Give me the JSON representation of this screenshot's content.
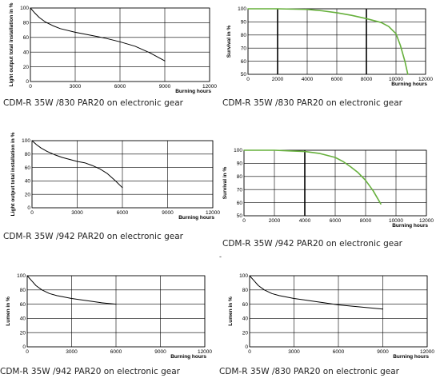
{
  "chart_data": [
    {
      "type": "line",
      "ylabel": "Light output total installation in %",
      "xlabel": "Burning hours",
      "x_ticks": [
        "0",
        "3000",
        "6000",
        "9000",
        "12000"
      ],
      "y_ticks": [
        "0",
        "20",
        "40",
        "60",
        "80",
        "100"
      ],
      "xlim": [
        0,
        12000
      ],
      "ylim": [
        0,
        100
      ],
      "grid": true,
      "series": [
        {
          "color": "#000000",
          "x": [
            0,
            300,
            600,
            1000,
            1500,
            2000,
            3000,
            4000,
            5000,
            6000,
            7000,
            8000,
            9000
          ],
          "y": [
            100,
            93,
            87,
            81,
            76,
            72,
            67,
            63,
            59,
            54,
            48,
            39,
            28
          ]
        }
      ],
      "caption": "CDM-R 35W /830 PAR20 on electronic gear"
    },
    {
      "type": "line",
      "ylabel": "Survival in %",
      "xlabel": "Burning hours",
      "x_ticks": [
        "0",
        "2000",
        "4000",
        "6000",
        "8000",
        "10000",
        "12000"
      ],
      "y_ticks": [
        "50",
        "60",
        "70",
        "80",
        "90",
        "100"
      ],
      "xlim": [
        0,
        12000
      ],
      "ylim": [
        50,
        100
      ],
      "grid": true,
      "series": [
        {
          "color": "#66b03c",
          "x": [
            0,
            2000,
            4000,
            5000,
            6000,
            7000,
            8000,
            9000,
            9500,
            10000,
            10300,
            10600,
            10800
          ],
          "y": [
            100,
            100,
            99.5,
            98.5,
            97,
            95,
            92.5,
            89.5,
            86.5,
            81,
            72,
            60,
            50
          ]
        }
      ],
      "caption": "CDM-R 35W /830 PAR20 on electronic gear"
    },
    {
      "type": "line",
      "ylabel": "Light output total installation in %",
      "xlabel": "Burning hours",
      "x_ticks": [
        "0",
        "3000",
        "6000",
        "9000",
        "12000"
      ],
      "y_ticks": [
        "0",
        "20",
        "40",
        "60",
        "80",
        "100"
      ],
      "xlim": [
        0,
        12000
      ],
      "ylim": [
        0,
        100
      ],
      "grid": true,
      "series": [
        {
          "color": "#000000",
          "x": [
            0,
            300,
            600,
            1000,
            1500,
            2000,
            2500,
            3000,
            3500,
            4000,
            4500,
            5000,
            5500,
            6000
          ],
          "y": [
            100,
            94,
            89,
            84,
            79,
            75,
            72,
            69,
            67,
            63,
            58,
            51,
            41,
            30
          ]
        }
      ],
      "caption": "CDM-R 35W /942 PAR20 on electronic gear"
    },
    {
      "type": "line",
      "ylabel": "Survival in %",
      "xlabel": "Burning hours",
      "x_ticks": [
        "0",
        "2000",
        "4000",
        "6000",
        "8000",
        "10000",
        "12000"
      ],
      "y_ticks": [
        "50",
        "60",
        "70",
        "80",
        "90",
        "100"
      ],
      "xlim": [
        0,
        12000
      ],
      "ylim": [
        50,
        100
      ],
      "grid": true,
      "series": [
        {
          "color": "#66b03c",
          "x": [
            0,
            2000,
            3000,
            4000,
            5000,
            6000,
            6500,
            7000,
            7500,
            8000,
            8500,
            9000
          ],
          "y": [
            100,
            100,
            99.5,
            99,
            97.5,
            94.5,
            91.5,
            87.5,
            83,
            77,
            69,
            59
          ]
        }
      ],
      "caption": "CDM-R 35W /942 PAR20 on electronic gear"
    },
    {
      "type": "line",
      "ylabel": "Lumen in %",
      "xlabel": "Burning hours",
      "x_ticks": [
        "0",
        "3000",
        "6000",
        "9000",
        "12000"
      ],
      "y_ticks": [
        "0",
        "20",
        "40",
        "60",
        "80",
        "100"
      ],
      "xlim": [
        0,
        12000
      ],
      "ylim": [
        0,
        100
      ],
      "grid": true,
      "series": [
        {
          "color": "#000000",
          "x": [
            0,
            300,
            600,
            1000,
            1500,
            2000,
            3000,
            4000,
            5000,
            6000
          ],
          "y": [
            100,
            93,
            86,
            80,
            75,
            72,
            68,
            65,
            62,
            60
          ]
        }
      ],
      "caption": "CDM-R 35W /942 PAR20 on electronic gear"
    },
    {
      "type": "line",
      "ylabel": "Lumen in %",
      "xlabel": "Burning hours",
      "x_ticks": [
        "0",
        "3000",
        "6000",
        "9000",
        "12000"
      ],
      "y_ticks": [
        "0",
        "20",
        "40",
        "60",
        "80",
        "100"
      ],
      "xlim": [
        0,
        12000
      ],
      "ylim": [
        0,
        100
      ],
      "grid": true,
      "series": [
        {
          "color": "#000000",
          "x": [
            0,
            300,
            600,
            1000,
            1500,
            2000,
            3000,
            4000,
            5000,
            6000,
            7000,
            8000,
            9000
          ],
          "y": [
            100,
            93,
            86,
            80,
            75,
            72,
            68,
            65,
            62,
            59,
            57,
            55,
            53
          ]
        }
      ],
      "caption": "CDM-R 35W /830 PAR20 on electronic gear"
    }
  ],
  "stray_mark": "-"
}
